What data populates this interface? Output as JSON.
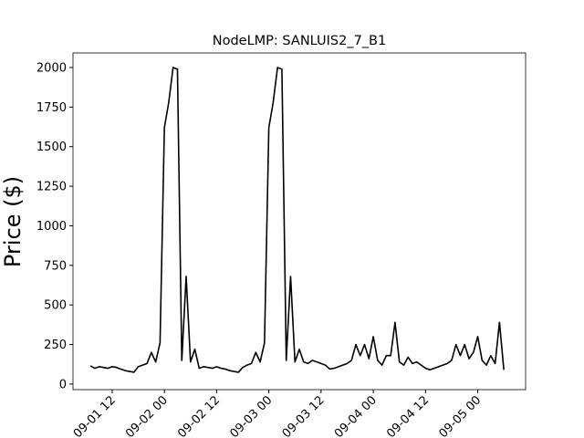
{
  "chart_data": {
    "type": "line",
    "title": "NodeLMP: SANLUIS2_7_B1",
    "y_label": "Price ($)",
    "x": [
      "09-01 07",
      "09-01 08",
      "09-01 09",
      "09-01 10",
      "09-01 11",
      "09-01 12",
      "09-01 13",
      "09-01 14",
      "09-01 15",
      "09-01 16",
      "09-01 17",
      "09-01 18",
      "09-01 19",
      "09-01 20",
      "09-01 21",
      "09-01 22",
      "09-01 23",
      "09-02 00",
      "09-02 01",
      "09-02 02",
      "09-02 03",
      "09-02 04",
      "09-02 05",
      "09-02 06",
      "09-02 07",
      "09-02 08",
      "09-02 09",
      "09-02 10",
      "09-02 11",
      "09-02 12",
      "09-02 13",
      "09-02 14",
      "09-02 15",
      "09-02 16",
      "09-02 17",
      "09-02 18",
      "09-02 19",
      "09-02 20",
      "09-02 21",
      "09-02 22",
      "09-02 23",
      "09-03 00",
      "09-03 01",
      "09-03 02",
      "09-03 03",
      "09-03 04",
      "09-03 05",
      "09-03 06",
      "09-03 07",
      "09-03 08",
      "09-03 09",
      "09-03 10",
      "09-03 11",
      "09-03 12",
      "09-03 13",
      "09-03 14",
      "09-03 15",
      "09-03 16",
      "09-03 17",
      "09-03 18",
      "09-03 19",
      "09-03 20",
      "09-03 21",
      "09-03 22",
      "09-03 23",
      "09-04 00",
      "09-04 01",
      "09-04 02",
      "09-04 03",
      "09-04 04",
      "09-04 05",
      "09-04 06",
      "09-04 07",
      "09-04 08",
      "09-04 09",
      "09-04 10",
      "09-04 11",
      "09-04 12",
      "09-04 13",
      "09-04 14",
      "09-04 15",
      "09-04 16",
      "09-04 17",
      "09-04 18",
      "09-04 19",
      "09-04 20",
      "09-04 21",
      "09-04 22",
      "09-04 23",
      "09-05 00",
      "09-05 01",
      "09-05 02",
      "09-05 03",
      "09-05 04",
      "09-05 05",
      "09-05 06"
    ],
    "series": [
      {
        "name": "SANLUIS2_7_B1",
        "color": "#000000",
        "values": [
          115,
          100,
          110,
          105,
          100,
          110,
          105,
          95,
          85,
          80,
          75,
          110,
          120,
          130,
          200,
          140,
          260,
          1620,
          1780,
          2000,
          1990,
          150,
          680,
          140,
          220,
          100,
          110,
          105,
          100,
          110,
          100,
          95,
          85,
          80,
          75,
          105,
          120,
          130,
          200,
          140,
          260,
          1620,
          1780,
          2000,
          1990,
          150,
          680,
          140,
          220,
          140,
          130,
          150,
          140,
          130,
          120,
          95,
          100,
          110,
          120,
          130,
          150,
          250,
          180,
          250,
          160,
          300,
          150,
          120,
          180,
          180,
          390,
          140,
          120,
          170,
          130,
          140,
          120,
          100,
          90,
          100,
          110,
          120,
          130,
          150,
          250,
          180,
          250,
          160,
          200,
          300,
          150,
          120,
          180,
          130,
          390,
          90
        ]
      }
    ],
    "xlim": [
      "09-01 03",
      "09-05 11"
    ],
    "xticks": [
      "09-01 12",
      "09-02 00",
      "09-02 12",
      "09-03 00",
      "09-03 12",
      "09-04 00",
      "09-04 12",
      "09-05 00"
    ],
    "ylim": [
      -35,
      2092
    ],
    "yticks": [
      0,
      250,
      500,
      750,
      1000,
      1250,
      1500,
      1750,
      2000
    ]
  }
}
